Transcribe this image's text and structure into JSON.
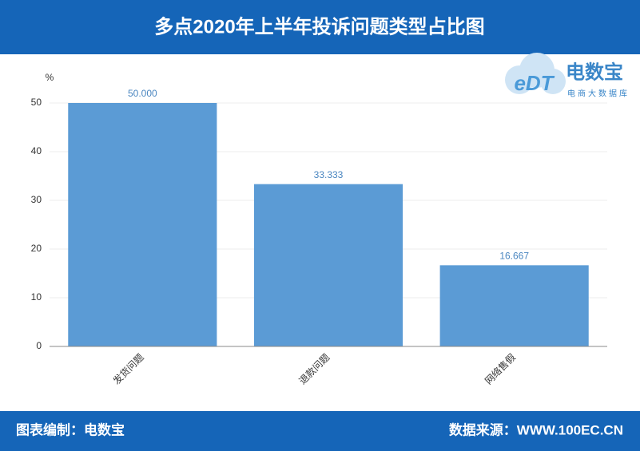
{
  "chart_data": {
    "type": "bar",
    "title": "多点2020年上半年投诉问题类型占比图",
    "y_label": "%",
    "categories": [
      "发货问题",
      "退款问题",
      "网络售假"
    ],
    "values": [
      50,
      33.333,
      16.667
    ],
    "value_labels": [
      "50.000",
      "33.333",
      "16.667"
    ],
    "color": "#5b9bd5",
    "ylim": [
      0,
      50
    ],
    "yticks": [
      0,
      10,
      20,
      30,
      40,
      50
    ],
    "grid": true
  },
  "logo": {
    "mark": "eDT",
    "name": "电数宝",
    "tagline": "电商大数据库"
  },
  "footer": {
    "left": "图表编制：电数宝",
    "right": "数据来源：WWW.100EC.CN"
  }
}
